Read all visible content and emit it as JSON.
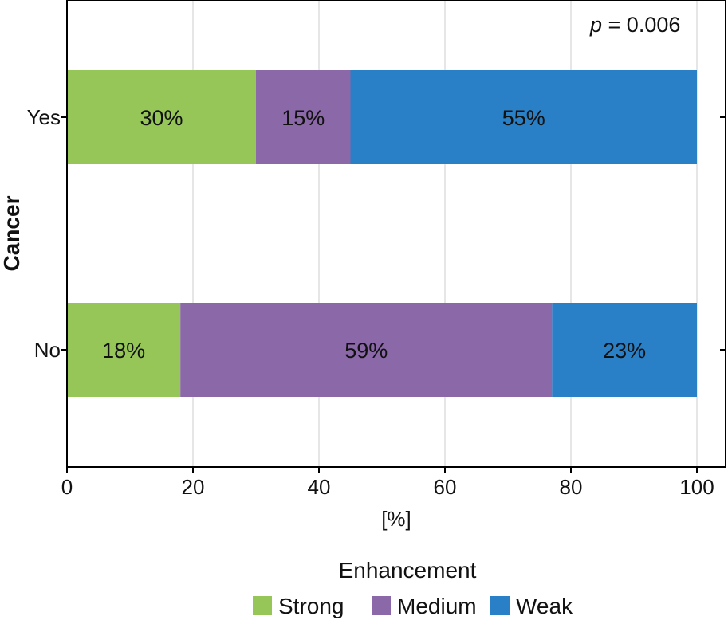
{
  "chart_data": {
    "type": "bar",
    "orientation": "horizontal",
    "stacked": true,
    "categories": [
      "Yes",
      "No"
    ],
    "series": [
      {
        "name": "Strong",
        "values": [
          30,
          18
        ],
        "labels": [
          "30%",
          "18%"
        ],
        "color": "#96c558"
      },
      {
        "name": "Medium",
        "values": [
          15,
          59
        ],
        "labels": [
          "15%",
          "59%"
        ],
        "color": "#8b68a8"
      },
      {
        "name": "Weak",
        "values": [
          55,
          23
        ],
        "labels": [
          "55%",
          "23%"
        ],
        "color": "#2a80c6"
      }
    ],
    "xlabel": "[%]",
    "ylabel": "Cancer",
    "xlim": [
      0,
      100
    ],
    "xticks": [
      0,
      20,
      40,
      60,
      80,
      100
    ],
    "grid": "vertical",
    "legend_title": "Enhancement",
    "legend_position": "bottom",
    "annotation": {
      "italic": "p",
      "text": " = 0.006"
    }
  }
}
